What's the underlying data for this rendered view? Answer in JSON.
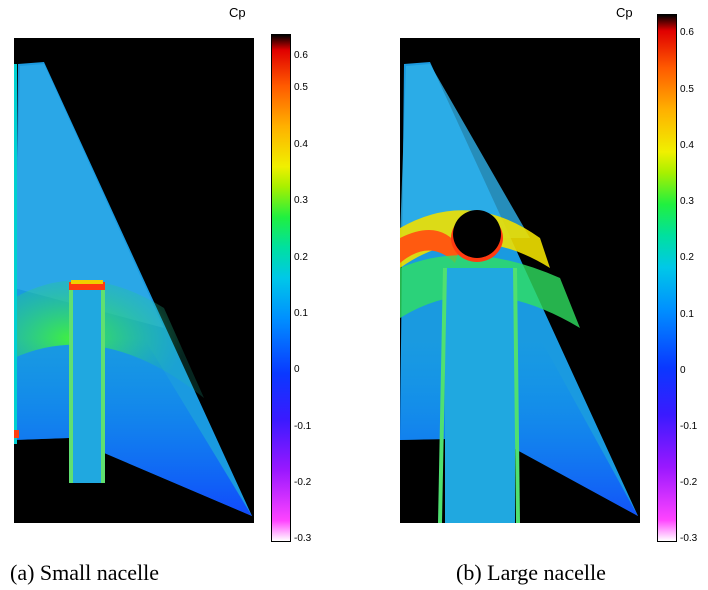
{
  "captions": {
    "a": "(a) Small nacelle",
    "b": "(b) Large nacelle"
  },
  "colorbar": {
    "title": "Cp",
    "ticks": [
      "0.6",
      "0.5",
      "0.4",
      "0.3",
      "0.2",
      "0.1",
      "0",
      "-0.1",
      "-0.2",
      "-0.3"
    ],
    "range": [
      -0.3,
      0.65
    ]
  },
  "colors": {
    "background": "#000000",
    "high": "#e00000",
    "mid": "#20f040",
    "base": "#0090ff",
    "low": "#0a38ff"
  }
}
